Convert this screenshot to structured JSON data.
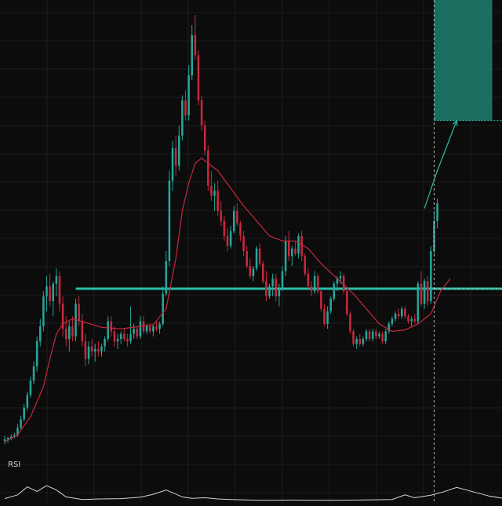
{
  "colors": {
    "background": "#0c0c0c",
    "grid": "#1d1d1d",
    "bull": "#26a69a",
    "bear": "#c8283d",
    "ma": "#c8283d",
    "level": "#2bbfa9",
    "target_zone": "#1a6f60",
    "target_line": "#2bbfa9",
    "crosshair": "#b8b8b8",
    "rsi_line": "#d6d6d6"
  },
  "panels": {
    "rsi_label": "RSI"
  },
  "chart_data": {
    "type": "candlestick",
    "x_range": [
      0,
      155
    ],
    "y_range": [
      0,
      100
    ],
    "grid": true,
    "support_level": {
      "value": 42.5,
      "x_start": 22,
      "x_end": 155
    },
    "target_zone": {
      "x_start": 133,
      "x_end": 151,
      "y_low": 76,
      "y_high": 100
    },
    "projection": [
      [
        130,
        58.5
      ],
      [
        134,
        66
      ],
      [
        140,
        76
      ]
    ],
    "crosshair": {
      "x": 133,
      "y": 42.5
    },
    "candles": [
      {
        "o": 12.2,
        "h": 13.2,
        "l": 11.5,
        "c": 12.5
      },
      {
        "o": 12.5,
        "h": 13.0,
        "l": 11.8,
        "c": 12.8
      },
      {
        "o": 12.8,
        "h": 13.5,
        "l": 12.3,
        "c": 13.0
      },
      {
        "o": 13.0,
        "h": 13.8,
        "l": 12.7,
        "c": 13.3
      },
      {
        "o": 13.3,
        "h": 15.5,
        "l": 13.0,
        "c": 14.8
      },
      {
        "o": 14.8,
        "h": 17.2,
        "l": 14.5,
        "c": 16.5
      },
      {
        "o": 16.5,
        "h": 19.5,
        "l": 16.0,
        "c": 18.8
      },
      {
        "o": 18.8,
        "h": 22.0,
        "l": 18.2,
        "c": 21.3
      },
      {
        "o": 21.3,
        "h": 25.0,
        "l": 20.8,
        "c": 24.2
      },
      {
        "o": 24.2,
        "h": 28.0,
        "l": 23.5,
        "c": 27.0
      },
      {
        "o": 27.0,
        "h": 33.0,
        "l": 26.0,
        "c": 32.0
      },
      {
        "o": 32.0,
        "h": 36.5,
        "l": 31.0,
        "c": 35.0
      },
      {
        "o": 35.0,
        "h": 42.0,
        "l": 34.0,
        "c": 41.0
      },
      {
        "o": 41.0,
        "h": 45.0,
        "l": 38.0,
        "c": 43.0
      },
      {
        "o": 43.0,
        "h": 45.5,
        "l": 39.0,
        "c": 40.0
      },
      {
        "o": 40.0,
        "h": 44.0,
        "l": 37.0,
        "c": 43.5
      },
      {
        "o": 43.5,
        "h": 46.5,
        "l": 41.0,
        "c": 45.0
      },
      {
        "o": 45.0,
        "h": 46.0,
        "l": 38.0,
        "c": 39.5
      },
      {
        "o": 39.5,
        "h": 41.0,
        "l": 33.0,
        "c": 34.5
      },
      {
        "o": 34.5,
        "h": 37.0,
        "l": 31.0,
        "c": 32.5
      },
      {
        "o": 32.5,
        "h": 36.0,
        "l": 30.0,
        "c": 35.0
      },
      {
        "o": 35.0,
        "h": 37.0,
        "l": 32.0,
        "c": 33.0
      },
      {
        "o": 33.0,
        "h": 40.5,
        "l": 32.0,
        "c": 39.5
      },
      {
        "o": 39.5,
        "h": 41.0,
        "l": 35.0,
        "c": 36.0
      },
      {
        "o": 36.0,
        "h": 37.5,
        "l": 31.0,
        "c": 32.0
      },
      {
        "o": 32.0,
        "h": 33.5,
        "l": 27.0,
        "c": 28.5
      },
      {
        "o": 28.5,
        "h": 32.0,
        "l": 27.5,
        "c": 31.0
      },
      {
        "o": 31.0,
        "h": 32.5,
        "l": 29.0,
        "c": 30.0
      },
      {
        "o": 30.0,
        "h": 31.5,
        "l": 28.0,
        "c": 30.5
      },
      {
        "o": 30.5,
        "h": 32.0,
        "l": 29.0,
        "c": 30.0
      },
      {
        "o": 30.0,
        "h": 31.5,
        "l": 29.0,
        "c": 31.0
      },
      {
        "o": 31.0,
        "h": 33.0,
        "l": 30.0,
        "c": 32.5
      },
      {
        "o": 32.5,
        "h": 37.0,
        "l": 32.0,
        "c": 36.0
      },
      {
        "o": 36.0,
        "h": 37.0,
        "l": 33.0,
        "c": 34.0
      },
      {
        "o": 34.0,
        "h": 35.0,
        "l": 31.0,
        "c": 32.0
      },
      {
        "o": 32.0,
        "h": 33.5,
        "l": 30.5,
        "c": 32.5
      },
      {
        "o": 32.5,
        "h": 34.0,
        "l": 31.5,
        "c": 33.5
      },
      {
        "o": 33.5,
        "h": 34.5,
        "l": 32.0,
        "c": 32.5
      },
      {
        "o": 32.5,
        "h": 33.5,
        "l": 31.0,
        "c": 32.0
      },
      {
        "o": 32.0,
        "h": 39.0,
        "l": 31.5,
        "c": 33.5
      },
      {
        "o": 33.5,
        "h": 35.5,
        "l": 32.5,
        "c": 34.5
      },
      {
        "o": 34.5,
        "h": 35.0,
        "l": 32.5,
        "c": 33.0
      },
      {
        "o": 33.0,
        "h": 37.0,
        "l": 32.5,
        "c": 36.0
      },
      {
        "o": 36.0,
        "h": 37.0,
        "l": 33.5,
        "c": 34.0
      },
      {
        "o": 34.0,
        "h": 35.5,
        "l": 33.5,
        "c": 35.0
      },
      {
        "o": 35.0,
        "h": 35.5,
        "l": 33.5,
        "c": 34.0
      },
      {
        "o": 34.0,
        "h": 35.5,
        "l": 33.0,
        "c": 35.0
      },
      {
        "o": 35.0,
        "h": 36.0,
        "l": 34.0,
        "c": 34.5
      },
      {
        "o": 34.5,
        "h": 36.0,
        "l": 33.5,
        "c": 35.5
      },
      {
        "o": 35.5,
        "h": 43.0,
        "l": 35.0,
        "c": 41.5
      },
      {
        "o": 41.5,
        "h": 50.0,
        "l": 41.0,
        "c": 48.0
      },
      {
        "o": 48.0,
        "h": 66.0,
        "l": 47.0,
        "c": 64.0
      },
      {
        "o": 64.0,
        "h": 72.0,
        "l": 62.0,
        "c": 70.5
      },
      {
        "o": 70.5,
        "h": 73.0,
        "l": 65.0,
        "c": 67.0
      },
      {
        "o": 67.0,
        "h": 75.0,
        "l": 66.0,
        "c": 73.0
      },
      {
        "o": 73.0,
        "h": 81.0,
        "l": 72.0,
        "c": 80.0
      },
      {
        "o": 80.0,
        "h": 82.0,
        "l": 76.0,
        "c": 77.0
      },
      {
        "o": 77.0,
        "h": 87.0,
        "l": 76.0,
        "c": 85.0
      },
      {
        "o": 85.0,
        "h": 95.0,
        "l": 84.0,
        "c": 93.0
      },
      {
        "o": 93.0,
        "h": 97.0,
        "l": 88.0,
        "c": 89.0
      },
      {
        "o": 89.0,
        "h": 90.0,
        "l": 79.0,
        "c": 80.0
      },
      {
        "o": 80.0,
        "h": 81.0,
        "l": 74.0,
        "c": 75.0
      },
      {
        "o": 75.0,
        "h": 76.0,
        "l": 69.0,
        "c": 70.0
      },
      {
        "o": 70.0,
        "h": 71.0,
        "l": 62.0,
        "c": 63.0
      },
      {
        "o": 63.0,
        "h": 66.0,
        "l": 60.0,
        "c": 61.0
      },
      {
        "o": 61.0,
        "h": 63.5,
        "l": 58.0,
        "c": 62.0
      },
      {
        "o": 62.0,
        "h": 64.0,
        "l": 57.0,
        "c": 58.0
      },
      {
        "o": 58.0,
        "h": 60.0,
        "l": 55.0,
        "c": 56.0
      },
      {
        "o": 56.0,
        "h": 57.0,
        "l": 52.0,
        "c": 53.0
      },
      {
        "o": 53.0,
        "h": 54.5,
        "l": 50.0,
        "c": 51.0
      },
      {
        "o": 51.0,
        "h": 55.0,
        "l": 50.5,
        "c": 54.0
      },
      {
        "o": 54.0,
        "h": 59.0,
        "l": 53.5,
        "c": 58.0
      },
      {
        "o": 58.0,
        "h": 59.5,
        "l": 55.0,
        "c": 55.5
      },
      {
        "o": 55.5,
        "h": 56.0,
        "l": 52.0,
        "c": 53.0
      },
      {
        "o": 53.0,
        "h": 54.0,
        "l": 49.0,
        "c": 50.0
      },
      {
        "o": 50.0,
        "h": 51.0,
        "l": 46.5,
        "c": 47.0
      },
      {
        "o": 47.0,
        "h": 48.5,
        "l": 44.5,
        "c": 45.0
      },
      {
        "o": 45.0,
        "h": 47.0,
        "l": 44.0,
        "c": 46.5
      },
      {
        "o": 46.5,
        "h": 51.0,
        "l": 46.0,
        "c": 50.5
      },
      {
        "o": 50.5,
        "h": 51.5,
        "l": 47.0,
        "c": 47.5
      },
      {
        "o": 47.5,
        "h": 48.0,
        "l": 43.5,
        "c": 44.0
      },
      {
        "o": 44.0,
        "h": 46.0,
        "l": 40.0,
        "c": 41.0
      },
      {
        "o": 41.0,
        "h": 43.5,
        "l": 40.5,
        "c": 43.0
      },
      {
        "o": 43.0,
        "h": 45.5,
        "l": 41.0,
        "c": 44.5
      },
      {
        "o": 44.5,
        "h": 45.5,
        "l": 40.0,
        "c": 41.0
      },
      {
        "o": 41.0,
        "h": 43.5,
        "l": 39.0,
        "c": 42.5
      },
      {
        "o": 42.5,
        "h": 47.0,
        "l": 42.0,
        "c": 46.0
      },
      {
        "o": 46.0,
        "h": 53.0,
        "l": 45.0,
        "c": 52.0
      },
      {
        "o": 52.0,
        "h": 54.0,
        "l": 48.0,
        "c": 49.0
      },
      {
        "o": 49.0,
        "h": 51.0,
        "l": 47.0,
        "c": 50.5
      },
      {
        "o": 50.5,
        "h": 52.0,
        "l": 49.0,
        "c": 49.5
      },
      {
        "o": 49.5,
        "h": 53.5,
        "l": 48.5,
        "c": 53.0
      },
      {
        "o": 53.0,
        "h": 54.0,
        "l": 48.0,
        "c": 49.0
      },
      {
        "o": 49.0,
        "h": 49.5,
        "l": 45.0,
        "c": 45.5
      },
      {
        "o": 45.5,
        "h": 46.5,
        "l": 42.5,
        "c": 43.0
      },
      {
        "o": 43.0,
        "h": 44.0,
        "l": 41.0,
        "c": 42.0
      },
      {
        "o": 42.0,
        "h": 46.0,
        "l": 41.5,
        "c": 45.0
      },
      {
        "o": 45.0,
        "h": 45.5,
        "l": 41.5,
        "c": 42.0
      },
      {
        "o": 42.0,
        "h": 42.5,
        "l": 38.0,
        "c": 38.5
      },
      {
        "o": 38.5,
        "h": 39.5,
        "l": 35.0,
        "c": 35.5
      },
      {
        "o": 35.5,
        "h": 39.0,
        "l": 34.5,
        "c": 38.0
      },
      {
        "o": 38.0,
        "h": 41.0,
        "l": 37.5,
        "c": 40.5
      },
      {
        "o": 40.5,
        "h": 44.0,
        "l": 40.0,
        "c": 43.5
      },
      {
        "o": 43.5,
        "h": 45.0,
        "l": 42.0,
        "c": 44.5
      },
      {
        "o": 44.5,
        "h": 46.0,
        "l": 43.5,
        "c": 45.0
      },
      {
        "o": 45.0,
        "h": 45.5,
        "l": 41.5,
        "c": 42.0
      },
      {
        "o": 42.0,
        "h": 42.5,
        "l": 37.0,
        "c": 37.5
      },
      {
        "o": 37.5,
        "h": 38.0,
        "l": 33.5,
        "c": 34.0
      },
      {
        "o": 34.0,
        "h": 34.5,
        "l": 31.0,
        "c": 31.5
      },
      {
        "o": 31.5,
        "h": 33.0,
        "l": 30.5,
        "c": 32.5
      },
      {
        "o": 32.5,
        "h": 33.5,
        "l": 31.0,
        "c": 31.5
      },
      {
        "o": 31.5,
        "h": 33.0,
        "l": 31.0,
        "c": 32.5
      },
      {
        "o": 32.5,
        "h": 34.5,
        "l": 32.0,
        "c": 34.0
      },
      {
        "o": 34.0,
        "h": 34.5,
        "l": 32.0,
        "c": 32.5
      },
      {
        "o": 32.5,
        "h": 34.5,
        "l": 32.0,
        "c": 34.0
      },
      {
        "o": 34.0,
        "h": 34.5,
        "l": 32.5,
        "c": 33.0
      },
      {
        "o": 33.0,
        "h": 34.0,
        "l": 32.5,
        "c": 33.5
      },
      {
        "o": 33.5,
        "h": 34.0,
        "l": 31.5,
        "c": 32.0
      },
      {
        "o": 32.0,
        "h": 34.5,
        "l": 31.5,
        "c": 34.0
      },
      {
        "o": 34.0,
        "h": 36.0,
        "l": 33.5,
        "c": 35.5
      },
      {
        "o": 35.5,
        "h": 37.0,
        "l": 35.0,
        "c": 36.5
      },
      {
        "o": 36.5,
        "h": 38.0,
        "l": 36.0,
        "c": 37.5
      },
      {
        "o": 37.5,
        "h": 38.5,
        "l": 36.5,
        "c": 37.0
      },
      {
        "o": 37.0,
        "h": 39.0,
        "l": 36.5,
        "c": 38.5
      },
      {
        "o": 38.5,
        "h": 39.0,
        "l": 36.5,
        "c": 37.0
      },
      {
        "o": 37.0,
        "h": 37.5,
        "l": 35.5,
        "c": 36.0
      },
      {
        "o": 36.0,
        "h": 37.0,
        "l": 35.0,
        "c": 36.5
      },
      {
        "o": 36.5,
        "h": 37.5,
        "l": 35.5,
        "c": 36.0
      },
      {
        "o": 36.0,
        "h": 44.0,
        "l": 35.5,
        "c": 43.5
      },
      {
        "o": 43.5,
        "h": 46.0,
        "l": 39.0,
        "c": 39.5
      },
      {
        "o": 39.5,
        "h": 44.5,
        "l": 38.5,
        "c": 44.0
      },
      {
        "o": 44.0,
        "h": 45.0,
        "l": 39.0,
        "c": 40.0
      },
      {
        "o": 40.0,
        "h": 51.0,
        "l": 39.5,
        "c": 50.0
      },
      {
        "o": 50.0,
        "h": 58.0,
        "l": 49.0,
        "c": 56.0
      },
      {
        "o": 56.0,
        "h": 60.5,
        "l": 54.5,
        "c": 59.5
      }
    ],
    "moving_average": [
      [
        0,
        12.0
      ],
      [
        4,
        13.4
      ],
      [
        8,
        17.0
      ],
      [
        12,
        23.0
      ],
      [
        14,
        28.5
      ],
      [
        16,
        33.5
      ],
      [
        18,
        35.5
      ],
      [
        21,
        36.5
      ],
      [
        25,
        35.8
      ],
      [
        30,
        34.8
      ],
      [
        36,
        34.5
      ],
      [
        42,
        35.0
      ],
      [
        46,
        35.3
      ],
      [
        50,
        38.5
      ],
      [
        53,
        48.5
      ],
      [
        55,
        58.0
      ],
      [
        57,
        63.5
      ],
      [
        59,
        67.5
      ],
      [
        61,
        68.5
      ],
      [
        63,
        67.5
      ],
      [
        66,
        66.0
      ],
      [
        70,
        62.5
      ],
      [
        74,
        59.0
      ],
      [
        78,
        56.0
      ],
      [
        82,
        53.0
      ],
      [
        86,
        52.0
      ],
      [
        90,
        52.0
      ],
      [
        94,
        50.5
      ],
      [
        98,
        47.5
      ],
      [
        103,
        44.5
      ],
      [
        108,
        41.5
      ],
      [
        112,
        38.5
      ],
      [
        116,
        35.5
      ],
      [
        120,
        34.0
      ],
      [
        124,
        34.3
      ],
      [
        128,
        35.5
      ],
      [
        132,
        37.5
      ],
      [
        135,
        42.0
      ],
      [
        138,
        44.5
      ]
    ],
    "rsi": [
      [
        0,
        0.2
      ],
      [
        4,
        0.42
      ],
      [
        7,
        0.88
      ],
      [
        10,
        0.62
      ],
      [
        13,
        0.95
      ],
      [
        16,
        0.7
      ],
      [
        19,
        0.3
      ],
      [
        24,
        0.15
      ],
      [
        30,
        0.18
      ],
      [
        36,
        0.2
      ],
      [
        42,
        0.28
      ],
      [
        46,
        0.45
      ],
      [
        50,
        0.7
      ],
      [
        55,
        0.3
      ],
      [
        58,
        0.22
      ],
      [
        62,
        0.25
      ],
      [
        66,
        0.18
      ],
      [
        70,
        0.15
      ],
      [
        76,
        0.12
      ],
      [
        82,
        0.1
      ],
      [
        90,
        0.12
      ],
      [
        100,
        0.1
      ],
      [
        110,
        0.12
      ],
      [
        120,
        0.15
      ],
      [
        124,
        0.42
      ],
      [
        127,
        0.25
      ],
      [
        132,
        0.4
      ],
      [
        136,
        0.6
      ],
      [
        140,
        0.85
      ],
      [
        144,
        0.65
      ],
      [
        150,
        0.35
      ],
      [
        155,
        0.2
      ]
    ]
  }
}
